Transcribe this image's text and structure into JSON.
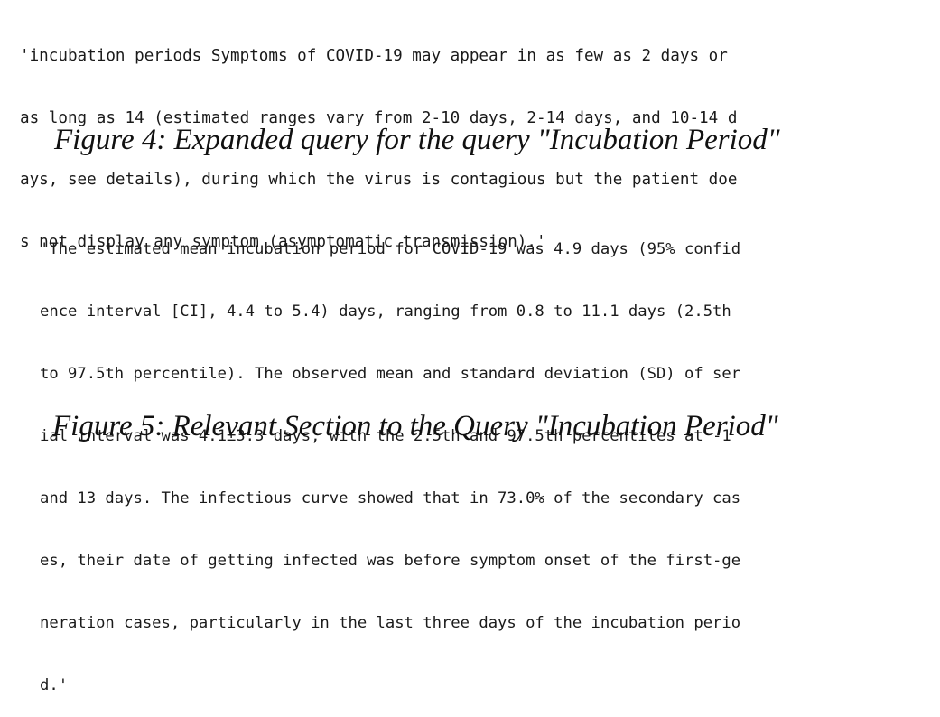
{
  "expanded_query": {
    "lines": [
      "'incubation periods Symptoms of COVID-19 may appear in as few as 2 days or",
      "as long as 14 (estimated ranges vary from 2-10 days, 2-14 days, and 10-14 d",
      "ays, see details), during which the virus is contagious but the patient doe",
      "s not display any symptom (asymptomatic transmission).'"
    ]
  },
  "figure4_caption": "Figure 4: Expanded query for the query \"Incubation Period\"",
  "relevant_section": {
    "lines": [
      "'The estimated mean incubation period for COVID-19 was 4.9 days (95% confid",
      "ence interval [CI], 4.4 to 5.4) days, ranging from 0.8 to 11.1 days (2.5th",
      "to 97.5th percentile). The observed mean and standard deviation (SD) of ser",
      "ial interval was 4.1±3.3 days, with the 2.5th and 97.5th percentiles at -1",
      "and 13 days. The infectious curve showed that in 73.0% of the secondary cas",
      "es, their date of getting infected was before symptom onset of the first-ge",
      "neration cases, particularly in the last three days of the incubation perio",
      "d.'"
    ]
  },
  "figure5_caption": "Figure 5: Relevant Section to the Query \"Incubation Period\""
}
